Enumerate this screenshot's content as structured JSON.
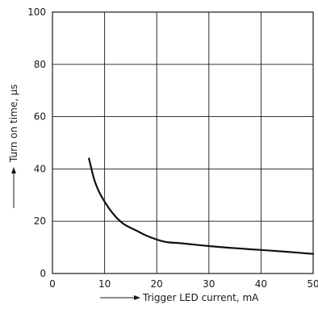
{
  "chart_data": {
    "type": "line",
    "title": "",
    "xlabel": "Trigger LED current, mA",
    "ylabel": "Turn on time, µs",
    "xlim": [
      0,
      50
    ],
    "ylim": [
      0,
      100
    ],
    "x_ticks": [
      0,
      10,
      20,
      30,
      40,
      50
    ],
    "y_ticks": [
      0,
      20,
      40,
      60,
      80,
      100
    ],
    "x_tick_labels": [
      "0",
      "10",
      "20",
      "30",
      "40",
      "50"
    ],
    "y_tick_labels": [
      "0",
      "20",
      "40",
      "60",
      "80",
      "100"
    ],
    "grid": true,
    "series": [
      {
        "x": [
          7,
          8,
          9,
          10,
          11,
          12,
          13,
          14,
          16,
          18,
          20,
          22,
          25,
          30,
          35,
          40,
          45,
          50
        ],
        "y": [
          44,
          36,
          31,
          27.5,
          24.5,
          22,
          20,
          18.5,
          16.5,
          14.5,
          13,
          12,
          11.5,
          10.5,
          9.7,
          9,
          8.3,
          7.5
        ]
      }
    ]
  }
}
